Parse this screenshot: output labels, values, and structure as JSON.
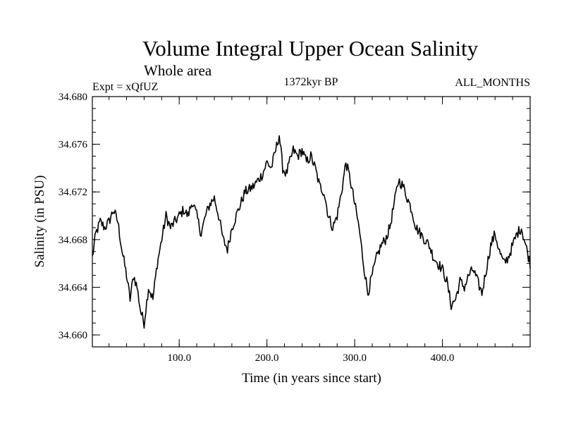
{
  "chart_data": {
    "type": "line",
    "title": "Volume Integral Upper Ocean Salinity",
    "subtitle": "Whole area",
    "experiment_label": "Expt = xQfUZ",
    "period_label": "1372kyr BP",
    "months_label": "ALL_MONTHS",
    "xlabel": "Time (in years since start)",
    "ylabel": "Salinity (in PSU)",
    "xlim": [
      1,
      500
    ],
    "ylim": [
      34.659,
      34.68
    ],
    "x_ticks": [
      100,
      200,
      300,
      400
    ],
    "x_tick_labels": [
      "100.0",
      "200.0",
      "300.0",
      "400.0"
    ],
    "y_ticks": [
      34.66,
      34.664,
      34.668,
      34.672,
      34.676,
      34.68
    ],
    "y_tick_labels": [
      "34.660",
      "34.664",
      "34.668",
      "34.672",
      "34.676",
      "34.680"
    ],
    "grid": false,
    "series": [
      {
        "name": "salinity",
        "color": "#000000",
        "knots": [
          [
            1,
            34.6665
          ],
          [
            5,
            34.6685
          ],
          [
            10,
            34.6695
          ],
          [
            15,
            34.669
          ],
          [
            20,
            34.6695
          ],
          [
            25,
            34.6705
          ],
          [
            30,
            34.6695
          ],
          [
            35,
            34.667
          ],
          [
            40,
            34.665
          ],
          [
            44,
            34.663
          ],
          [
            48,
            34.665
          ],
          [
            52,
            34.664
          ],
          [
            56,
            34.662
          ],
          [
            60,
            34.661
          ],
          [
            65,
            34.664
          ],
          [
            70,
            34.663
          ],
          [
            75,
            34.666
          ],
          [
            80,
            34.668
          ],
          [
            85,
            34.67
          ],
          [
            90,
            34.669
          ],
          [
            95,
            34.6695
          ],
          [
            100,
            34.67
          ],
          [
            105,
            34.6705
          ],
          [
            110,
            34.67
          ],
          [
            115,
            34.6712
          ],
          [
            120,
            34.67
          ],
          [
            125,
            34.6685
          ],
          [
            130,
            34.67
          ],
          [
            135,
            34.671
          ],
          [
            140,
            34.6715
          ],
          [
            145,
            34.67
          ],
          [
            150,
            34.668
          ],
          [
            155,
            34.6672
          ],
          [
            160,
            34.669
          ],
          [
            165,
            34.67
          ],
          [
            170,
            34.671
          ],
          [
            175,
            34.672
          ],
          [
            180,
            34.6722
          ],
          [
            185,
            34.6725
          ],
          [
            190,
            34.673
          ],
          [
            195,
            34.6735
          ],
          [
            200,
            34.6745
          ],
          [
            205,
            34.674
          ],
          [
            210,
            34.6755
          ],
          [
            214,
            34.6768
          ],
          [
            218,
            34.674
          ],
          [
            222,
            34.6735
          ],
          [
            226,
            34.6745
          ],
          [
            230,
            34.6755
          ],
          [
            235,
            34.675
          ],
          [
            240,
            34.6755
          ],
          [
            245,
            34.6745
          ],
          [
            250,
            34.675
          ],
          [
            255,
            34.674
          ],
          [
            260,
            34.6725
          ],
          [
            265,
            34.672
          ],
          [
            270,
            34.67
          ],
          [
            275,
            34.669
          ],
          [
            280,
            34.67
          ],
          [
            285,
            34.672
          ],
          [
            290,
            34.6745
          ],
          [
            295,
            34.673
          ],
          [
            300,
            34.671
          ],
          [
            305,
            34.669
          ],
          [
            310,
            34.666
          ],
          [
            315,
            34.6635
          ],
          [
            320,
            34.665
          ],
          [
            325,
            34.6665
          ],
          [
            330,
            34.6675
          ],
          [
            335,
            34.668
          ],
          [
            340,
            34.669
          ],
          [
            345,
            34.671
          ],
          [
            350,
            34.673
          ],
          [
            355,
            34.6725
          ],
          [
            360,
            34.6715
          ],
          [
            365,
            34.6705
          ],
          [
            370,
            34.669
          ],
          [
            375,
            34.6685
          ],
          [
            380,
            34.668
          ],
          [
            385,
            34.6675
          ],
          [
            390,
            34.6665
          ],
          [
            395,
            34.666
          ],
          [
            400,
            34.6655
          ],
          [
            405,
            34.6645
          ],
          [
            410,
            34.6625
          ],
          [
            415,
            34.663
          ],
          [
            420,
            34.6645
          ],
          [
            425,
            34.664
          ],
          [
            430,
            34.665
          ],
          [
            435,
            34.6655
          ],
          [
            440,
            34.6645
          ],
          [
            445,
            34.6635
          ],
          [
            450,
            34.6655
          ],
          [
            455,
            34.6675
          ],
          [
            460,
            34.6685
          ],
          [
            465,
            34.667
          ],
          [
            470,
            34.666
          ],
          [
            475,
            34.6665
          ],
          [
            480,
            34.6675
          ],
          [
            485,
            34.6685
          ],
          [
            490,
            34.669
          ],
          [
            495,
            34.6675
          ],
          [
            500,
            34.666
          ]
        ]
      }
    ]
  }
}
